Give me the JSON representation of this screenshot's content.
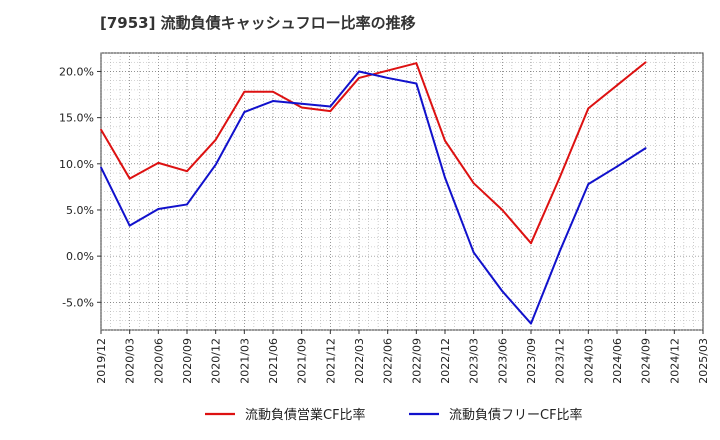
{
  "chart_data": {
    "type": "line",
    "title": "[7953]  流動負債キャッシュフロー比率の推移",
    "xlabel": "",
    "ylabel": "",
    "ylim": [
      -8,
      22
    ],
    "yticks": [
      -5,
      0,
      5,
      10,
      15,
      20
    ],
    "ytick_labels": [
      "-5.0%",
      "0.0%",
      "5.0%",
      "10.0%",
      "15.0%",
      "20.0%"
    ],
    "grid": true,
    "legend_position": "bottom",
    "categories": [
      "2019/12",
      "2020/03",
      "2020/06",
      "2020/09",
      "2020/12",
      "2021/03",
      "2021/06",
      "2021/09",
      "2021/12",
      "2022/03",
      "2022/06",
      "2022/09",
      "2022/12",
      "2023/03",
      "2023/06",
      "2023/09",
      "2023/12",
      "2024/03",
      "2024/06",
      "2024/09",
      "2024/12",
      "2025/03"
    ],
    "series": [
      {
        "name": "流動負債営業CF比率",
        "color": "#dd1111",
        "values": [
          13.7,
          8.4,
          10.1,
          9.2,
          12.6,
          17.8,
          17.8,
          16.1,
          15.7,
          19.3,
          20.1,
          20.9,
          12.5,
          7.9,
          5.0,
          1.4,
          8.5,
          16.0,
          18.5,
          21.0,
          null,
          null
        ]
      },
      {
        "name": "流動負債フリーCF比率",
        "color": "#1111cc",
        "values": [
          9.6,
          3.3,
          5.1,
          5.6,
          9.9,
          15.6,
          16.8,
          16.5,
          16.2,
          20.0,
          19.3,
          18.7,
          8.5,
          0.4,
          -3.8,
          -7.3,
          0.5,
          7.8,
          9.7,
          11.7,
          null,
          null
        ]
      }
    ]
  }
}
